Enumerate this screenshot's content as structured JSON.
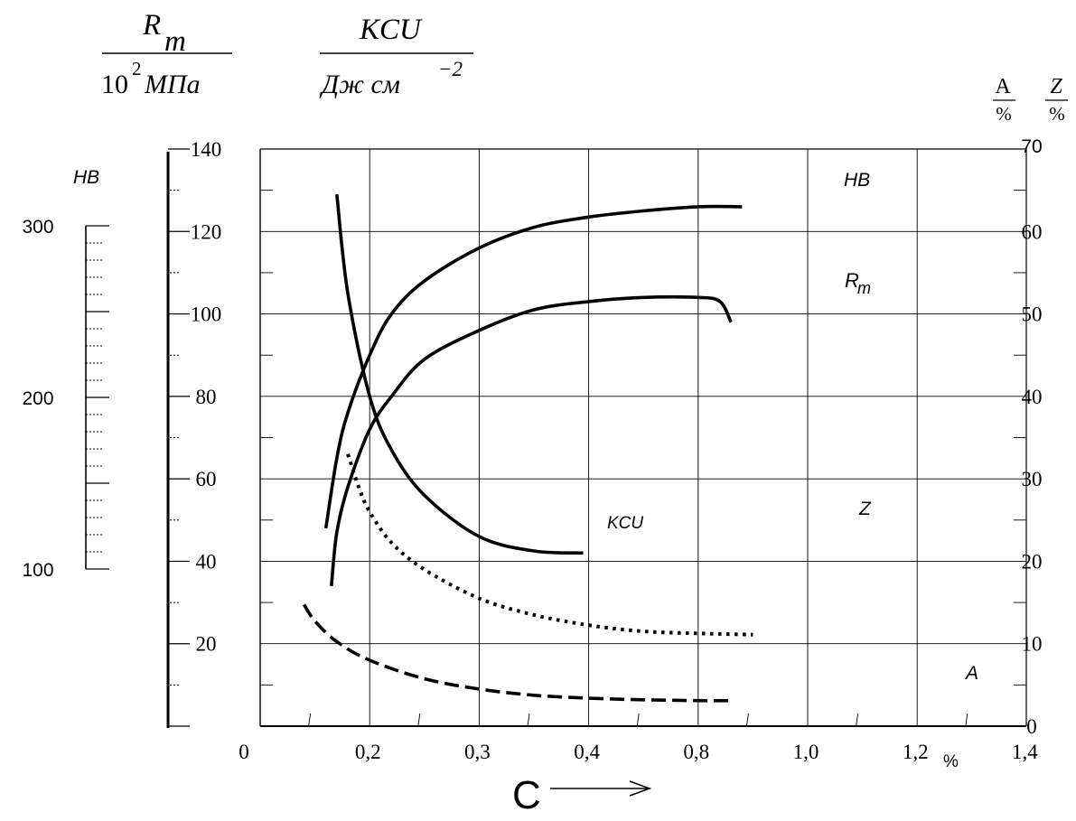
{
  "chart_data": {
    "type": "line",
    "header": {
      "rm_label": "R",
      "rm_sub": "m",
      "rm_den_exp": "2",
      "rm_den_base": "10",
      "rm_den_unit": "МПа",
      "kcu_label": "KCU",
      "kcu_den": "Дж см",
      "kcu_den_exp": "−2",
      "a_label": "A",
      "a_unit": "%",
      "z_label": "Z",
      "z_unit": "%"
    },
    "xlabel": "C",
    "x_unit": "%",
    "xticks": [
      "0",
      "0,2",
      "0,3",
      "0,4",
      "0,8",
      "1,0",
      "1,2",
      "1,4"
    ],
    "left_axis": {
      "ticks": [
        "140",
        "120",
        "100",
        "80",
        "60",
        "40",
        "20"
      ],
      "ylim": [
        0,
        140
      ]
    },
    "hb_axis": {
      "label": "HB",
      "ticks": [
        "300",
        "200",
        "100"
      ],
      "ylim": [
        100,
        300
      ]
    },
    "right_axis": {
      "ticks": [
        "70",
        "60",
        "50",
        "40",
        "30",
        "20",
        "10",
        "0"
      ],
      "ylim": [
        0,
        70
      ]
    },
    "grid": true,
    "series": [
      {
        "name": "HB",
        "label": "HB",
        "style": "solid",
        "x": [
          0.6,
          0.7,
          0.8,
          1.0,
          1.2,
          1.5,
          2.0,
          2.5,
          3.0,
          3.5,
          4.0,
          4.4
        ],
        "y": [
          48,
          65,
          76,
          90,
          100,
          108,
          116,
          121,
          123.5,
          125,
          126,
          126
        ]
      },
      {
        "name": "Rm",
        "label": "R",
        "label_sub": "m",
        "style": "solid",
        "x": [
          0.65,
          0.7,
          0.8,
          1.0,
          1.2,
          1.5,
          2.0,
          2.5,
          3.0,
          3.5,
          4.0,
          4.2,
          4.3
        ],
        "y": [
          34,
          47,
          58,
          72,
          80,
          89,
          96,
          101,
          103,
          104,
          104,
          103,
          98
        ]
      },
      {
        "name": "KCU",
        "label": "KCU",
        "style": "solid",
        "x": [
          0.7,
          0.8,
          1.0,
          1.2,
          1.5,
          2.0,
          2.5,
          2.95
        ],
        "y": [
          129,
          105,
          80,
          67,
          56,
          46,
          42.5,
          42
        ]
      },
      {
        "name": "Z",
        "label": "Z",
        "style": "dotted",
        "x": [
          0.8,
          0.9,
          1.0,
          1.2,
          1.5,
          2.0,
          2.5,
          3.0,
          3.5,
          4.0,
          4.5
        ],
        "y": [
          66,
          58,
          52,
          44.5,
          38,
          31,
          27,
          24.5,
          23,
          22.5,
          22.2
        ]
      },
      {
        "name": "A",
        "label": "A",
        "style": "dashed",
        "x": [
          0.4,
          0.5,
          0.7,
          1.0,
          1.5,
          2.0,
          2.5,
          3.0,
          3.5,
          4.0,
          4.3
        ],
        "y": [
          29.5,
          25.5,
          20.5,
          16,
          11.5,
          9,
          7.5,
          6.8,
          6.4,
          6.2,
          6.2
        ]
      }
    ]
  }
}
